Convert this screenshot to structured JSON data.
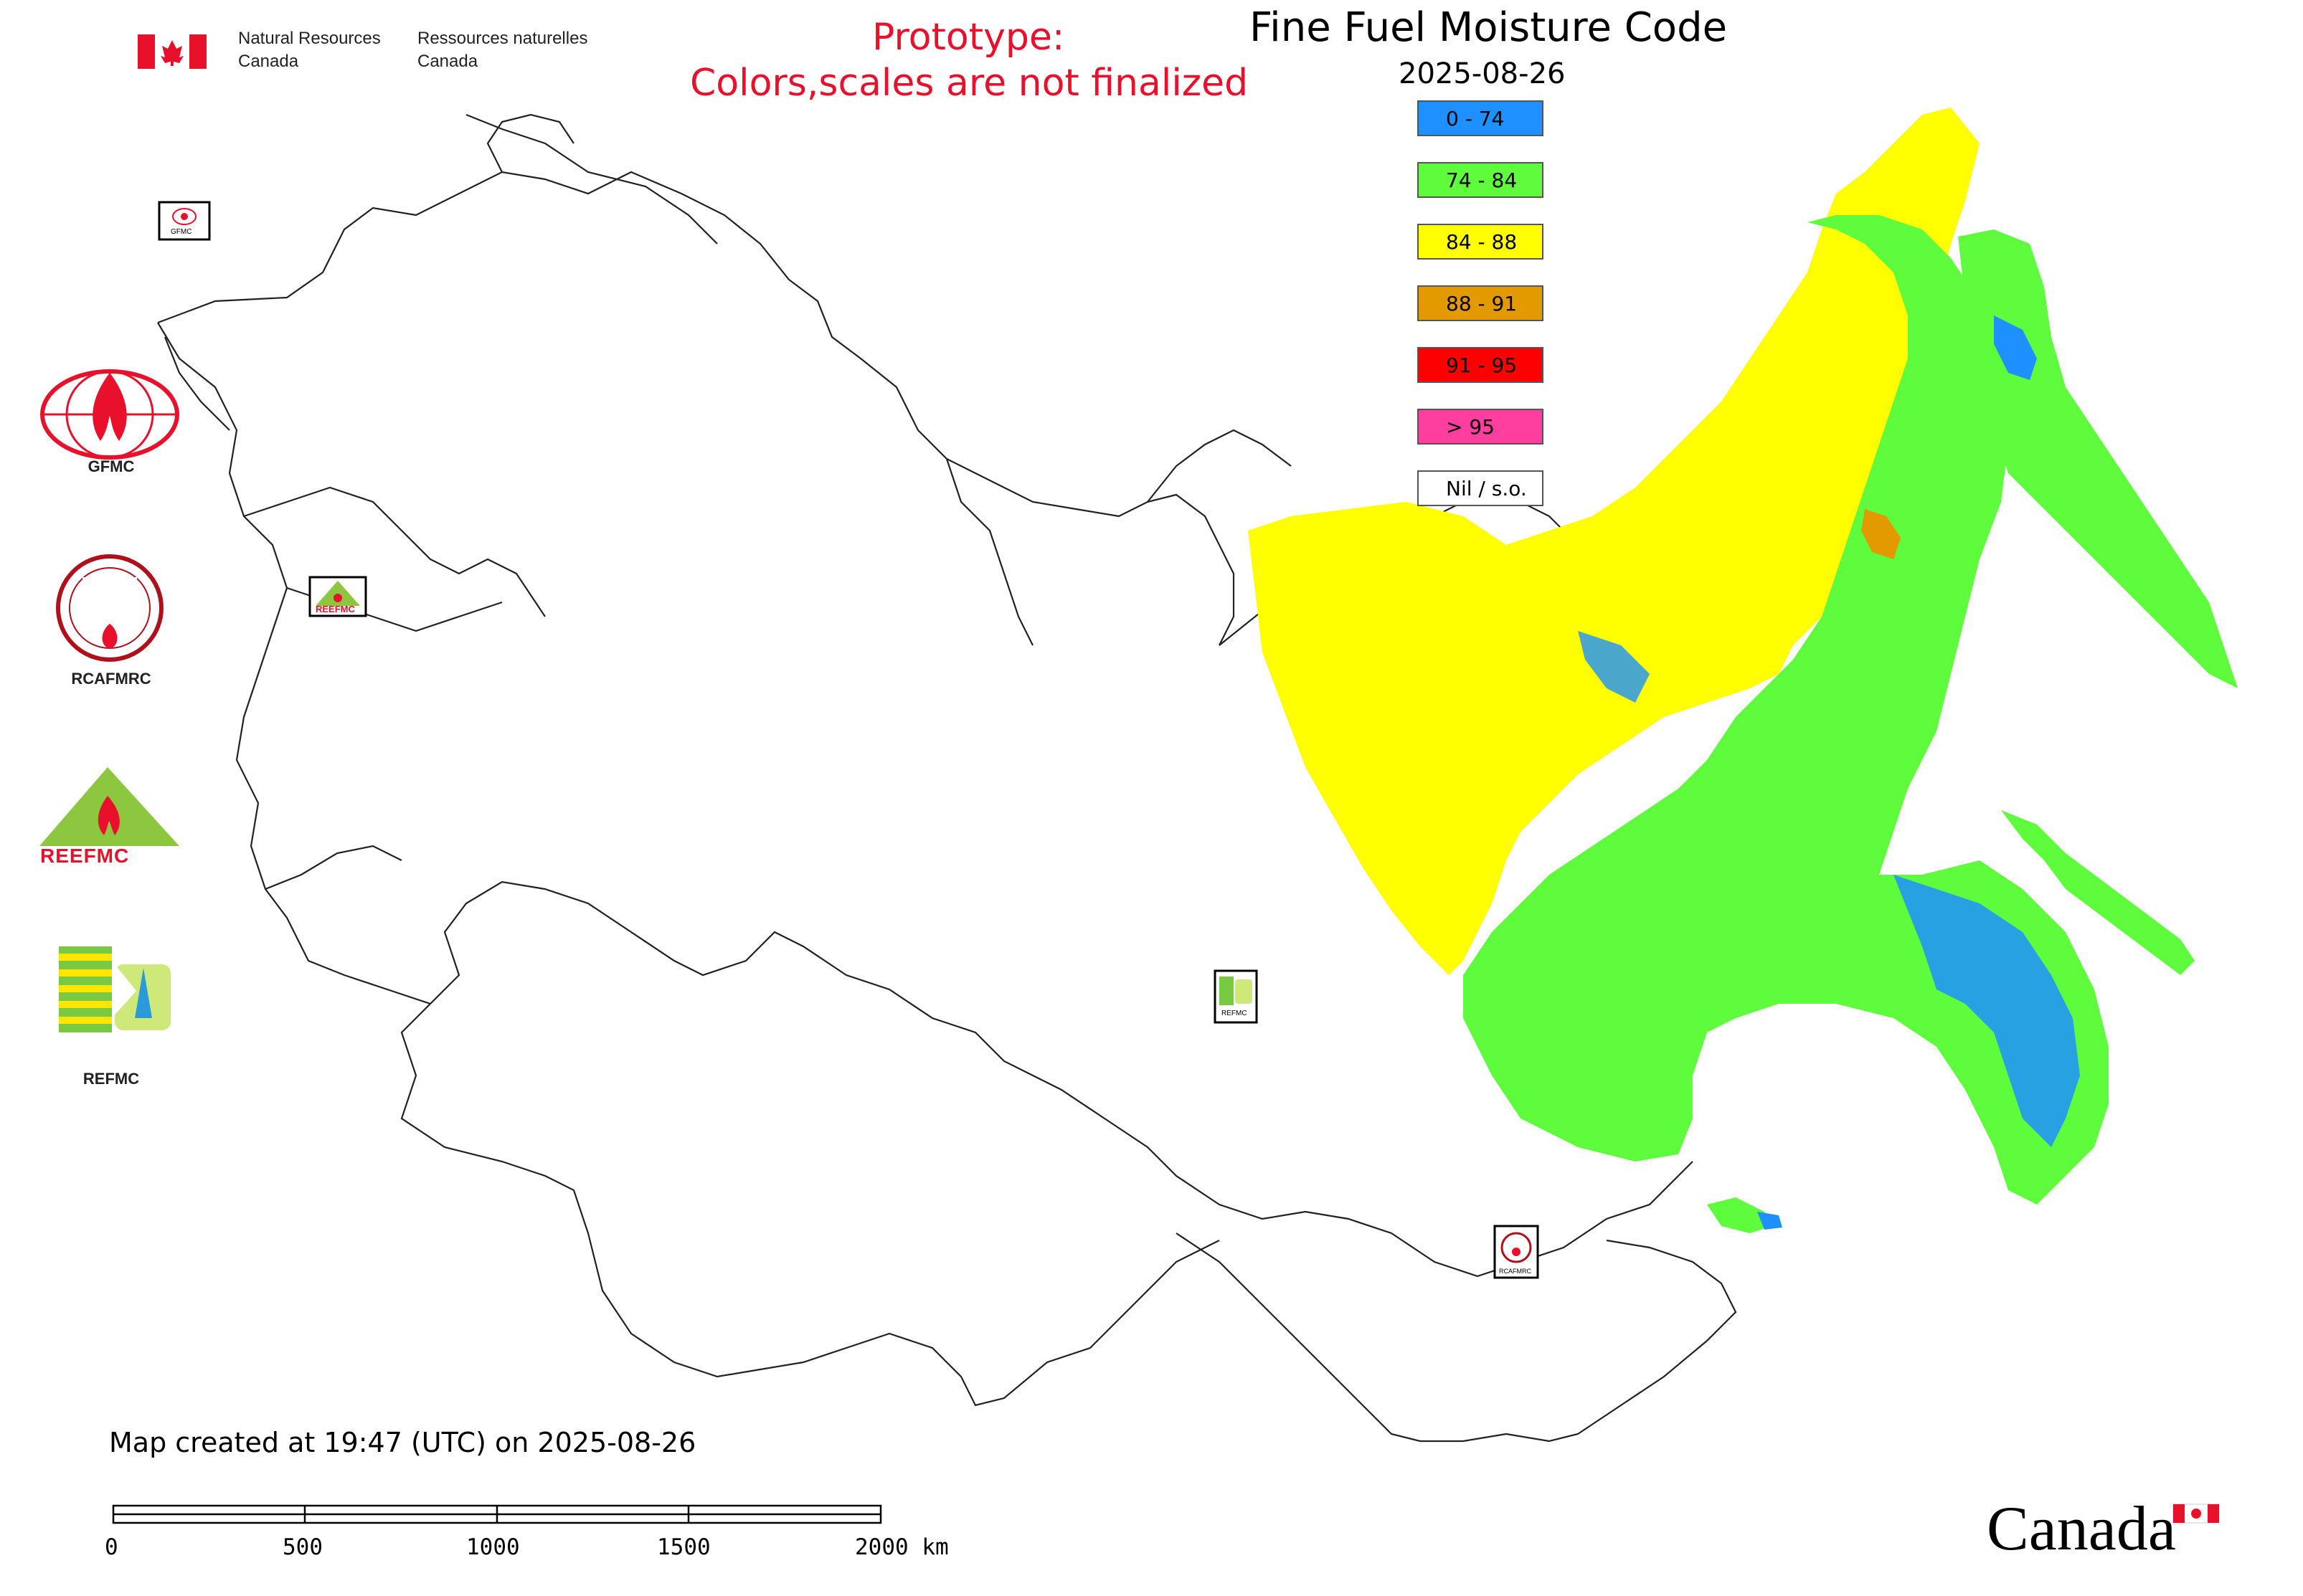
{
  "header": {
    "dept_en_line1": "Natural Resources",
    "dept_en_line2": "Canada",
    "dept_fr_line1": "Ressources naturelles",
    "dept_fr_line2": "Canada"
  },
  "notice": {
    "line1": "Prototype:",
    "line2": "Colors,scales are not finalized",
    "color": "#e8102a"
  },
  "map": {
    "title": "Fine Fuel Moisture Code",
    "date": "2025-08-26",
    "created": "Map created at 19:47 (UTC) on 2025-08-26"
  },
  "legend": [
    {
      "label": "0 - 74",
      "color": "#1e90ff"
    },
    {
      "label": "74 - 84",
      "color": "#5efc3c"
    },
    {
      "label": "84 - 88",
      "color": "#ffff00"
    },
    {
      "label": "88 - 91",
      "color": "#e39a00"
    },
    {
      "label": "91 - 95",
      "color": "#ff0000"
    },
    {
      "label": "> 95",
      "color": "#ff3fa0"
    },
    {
      "label": "Nil / s.o.",
      "color": "#ffffff"
    }
  ],
  "logos": {
    "gfmc": "GFMC",
    "rcafmrc": "RCAFMRC",
    "reefmc": "REEFMC",
    "refmc": "REFMC"
  },
  "map_markers": {
    "gfmc": "GFMC",
    "reefmc": "REEFMC",
    "refmc": "REFMC",
    "rcafmrc": "RCAFMRC"
  },
  "scale": {
    "labels": [
      "0",
      "500",
      "1000",
      "1500",
      "2000 km"
    ]
  },
  "wordmark": "Canada"
}
